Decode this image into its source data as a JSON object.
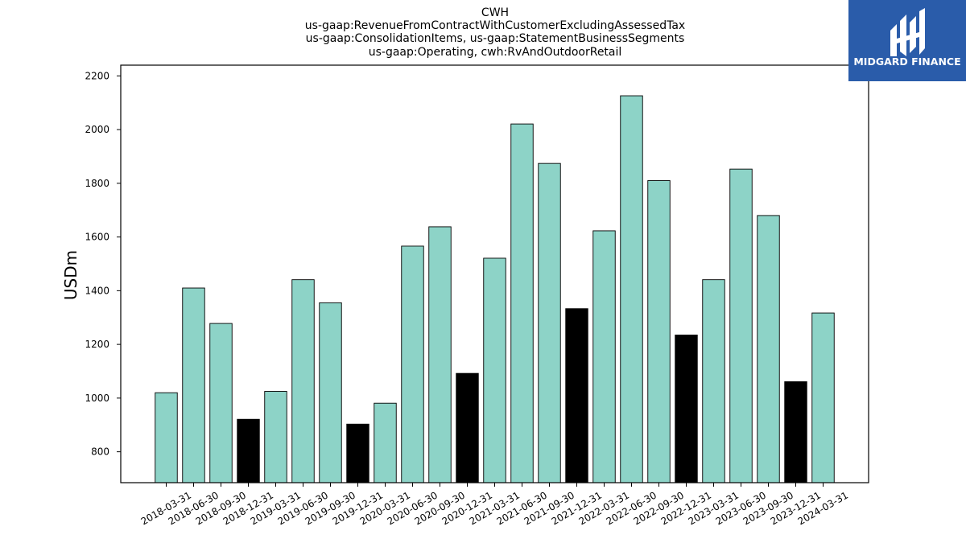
{
  "chart_data": {
    "type": "bar",
    "title_lines": [
      "CWH",
      "us-gaap:RevenueFromContractWithCustomerExcludingAssessedTax",
      "us-gaap:ConsolidationItems, us-gaap:StatementBusinessSegments",
      "us-gaap:Operating, cwh:RvAndOutdoorRetail"
    ],
    "ylabel": "USDm",
    "xlabel": "",
    "ylim": [
      685,
      2240
    ],
    "yticks": [
      800,
      1000,
      1200,
      1400,
      1600,
      1800,
      2000,
      2200
    ],
    "grid": false,
    "categories": [
      "2018-03-31",
      "2018-06-30",
      "2018-09-30",
      "2018-12-31",
      "2019-03-31",
      "2019-06-30",
      "2019-09-30",
      "2019-12-31",
      "2020-03-31",
      "2020-06-30",
      "2020-09-30",
      "2020-12-31",
      "2021-03-31",
      "2021-06-30",
      "2021-09-30",
      "2021-12-31",
      "2022-03-31",
      "2022-06-30",
      "2022-09-30",
      "2022-12-31",
      "2023-03-31",
      "2023-06-30",
      "2023-09-30",
      "2023-12-31",
      "2024-03-31"
    ],
    "values": [
      1020,
      1410,
      1278,
      921,
      1025,
      1441,
      1355,
      903,
      981,
      1566,
      1638,
      1092,
      1521,
      2021,
      1874,
      1333,
      1623,
      2126,
      1810,
      1235,
      1441,
      1853,
      1680,
      1061,
      1317
    ],
    "colors": {
      "quarter": "#8dd3c7",
      "year_end": "#000000",
      "edge": "#000000"
    },
    "year_end_categories": [
      "2018-12-31",
      "2019-12-31",
      "2020-12-31",
      "2021-12-31",
      "2022-12-31",
      "2023-12-31"
    ]
  },
  "logo": {
    "text": "MIDGARD FINANCE",
    "background": "#2a5caa",
    "icon": "midgard-logo-icon"
  }
}
